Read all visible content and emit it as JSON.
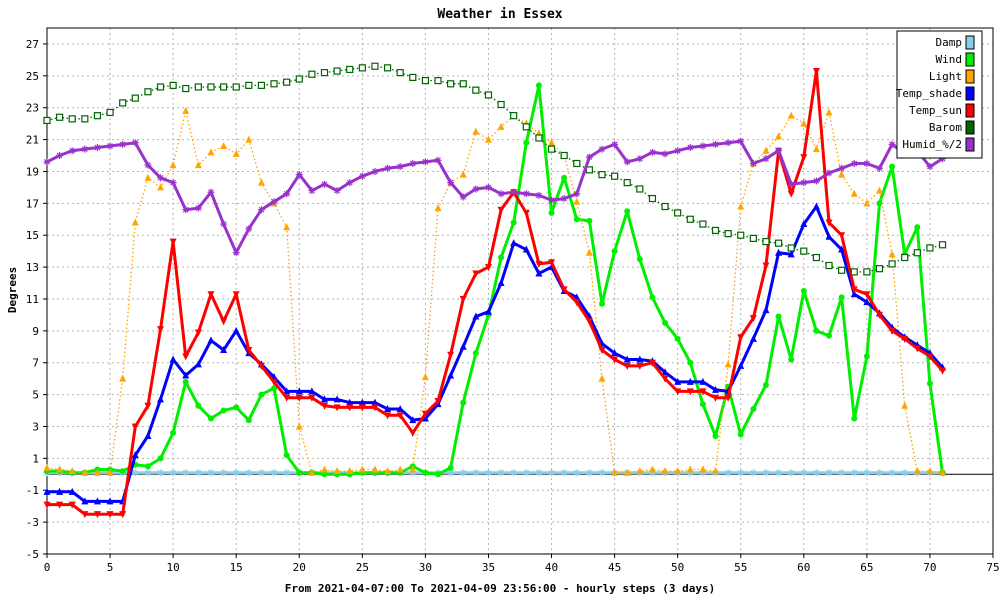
{
  "chart_data": {
    "type": "line",
    "title": "Weather in Essex",
    "xlabel": "From 2021-04-07:00 To 2021-04-09 23:56:00 - hourly steps (3 days)",
    "ylabel": "Degrees",
    "xlim": [
      0,
      75
    ],
    "ylim": [
      -5,
      28
    ],
    "x_ticks": [
      0,
      5,
      10,
      15,
      20,
      25,
      30,
      35,
      40,
      45,
      50,
      55,
      60,
      65,
      70,
      75
    ],
    "y_ticks": [
      -5,
      -3,
      -1,
      1,
      3,
      5,
      7,
      9,
      11,
      13,
      15,
      17,
      19,
      21,
      23,
      25,
      27
    ],
    "grid": true,
    "legend_position": "top-right",
    "x": [
      0,
      1,
      2,
      3,
      4,
      5,
      6,
      7,
      8,
      9,
      10,
      11,
      12,
      13,
      14,
      15,
      16,
      17,
      18,
      19,
      20,
      21,
      22,
      23,
      24,
      25,
      26,
      27,
      28,
      29,
      30,
      31,
      32,
      33,
      34,
      35,
      36,
      37,
      38,
      39,
      40,
      41,
      42,
      43,
      44,
      45,
      46,
      47,
      48,
      49,
      50,
      51,
      52,
      53,
      54,
      55,
      56,
      57,
      58,
      59,
      60,
      61,
      62,
      63,
      64,
      65,
      66,
      67,
      68,
      69,
      70,
      71
    ],
    "series": [
      {
        "name": "Damp",
        "color": "#87ceeb",
        "marker": "star",
        "style": "solid",
        "values": [
          0.1,
          0.1,
          0.1,
          0.1,
          0.1,
          0.1,
          0.1,
          0.1,
          0.1,
          0.1,
          0.1,
          0.1,
          0.1,
          0.1,
          0.1,
          0.1,
          0.1,
          0.1,
          0.1,
          0.1,
          0.1,
          0.1,
          0.1,
          0.1,
          0.1,
          0.1,
          0.1,
          0.1,
          0.1,
          0.1,
          0.1,
          0.1,
          0.1,
          0.1,
          0.1,
          0.1,
          0.1,
          0.1,
          0.1,
          0.1,
          0.1,
          0.1,
          0.1,
          0.1,
          0.1,
          0.1,
          0.1,
          0.1,
          0.1,
          0.1,
          0.1,
          0.1,
          0.1,
          0.1,
          0.1,
          0.1,
          0.1,
          0.1,
          0.1,
          0.1,
          0.1,
          0.1,
          0.1,
          0.1,
          0.1,
          0.1,
          0.1,
          0.1,
          0.1,
          0.1,
          0.1,
          0.1
        ]
      },
      {
        "name": "Wind",
        "color": "#00ee00",
        "marker": "circle",
        "style": "solid",
        "values": [
          0.2,
          0.2,
          0.1,
          0.1,
          0.3,
          0.3,
          0.2,
          0.6,
          0.5,
          1.0,
          2.6,
          5.8,
          4.3,
          3.5,
          4.0,
          4.2,
          3.4,
          5.0,
          5.4,
          1.2,
          0.1,
          0.1,
          0.0,
          0.0,
          0.0,
          0.1,
          0.1,
          0.1,
          0.1,
          0.5,
          0.1,
          0.0,
          0.4,
          4.5,
          7.6,
          10.0,
          13.6,
          15.8,
          20.8,
          24.4,
          16.4,
          18.6,
          16.0,
          15.9,
          10.7,
          14.0,
          16.5,
          13.5,
          11.1,
          9.5,
          8.5,
          7.0,
          4.4,
          2.4,
          5.5,
          2.5,
          4.1,
          5.6,
          9.9,
          7.2,
          11.5,
          9.0,
          8.7,
          11.1,
          3.5,
          7.4,
          17.0,
          19.3,
          13.8,
          15.5,
          5.7,
          0.1
        ]
      },
      {
        "name": "Light",
        "color": "#ffa500",
        "marker": "triangle-up",
        "style": "dotted",
        "values": [
          0.4,
          0.3,
          0.2,
          0.1,
          0.1,
          0.1,
          6.0,
          15.8,
          18.6,
          18.0,
          19.4,
          22.8,
          19.4,
          20.2,
          20.6,
          20.1,
          21.0,
          18.3,
          17.0,
          15.5,
          3.0,
          0.1,
          0.3,
          0.2,
          0.2,
          0.3,
          0.3,
          0.2,
          0.3,
          0.3,
          6.1,
          16.7,
          18.3,
          18.8,
          21.5,
          21.0,
          21.8,
          22.5,
          22.0,
          21.4,
          20.8,
          20.0,
          17.1,
          13.9,
          6.0,
          0.1,
          0.1,
          0.2,
          0.3,
          0.2,
          0.2,
          0.3,
          0.3,
          0.2,
          6.9,
          16.8,
          19.5,
          20.3,
          21.2,
          22.5,
          22.0,
          20.4,
          22.7,
          18.8,
          17.6,
          17.0,
          17.8,
          13.8,
          4.3,
          0.2,
          0.2,
          0.1
        ]
      },
      {
        "name": "Temp_shade",
        "color": "#0000ff",
        "marker": "triangle-up",
        "style": "solid",
        "values": [
          -1.1,
          -1.1,
          -1.1,
          -1.7,
          -1.7,
          -1.7,
          -1.7,
          1.2,
          2.4,
          4.7,
          7.2,
          6.2,
          6.9,
          8.4,
          7.8,
          9.0,
          7.6,
          6.9,
          6.1,
          5.2,
          5.2,
          5.2,
          4.7,
          4.7,
          4.5,
          4.5,
          4.5,
          4.1,
          4.1,
          3.4,
          3.5,
          4.4,
          6.2,
          8.0,
          9.9,
          10.2,
          12.0,
          14.5,
          14.1,
          12.6,
          13.0,
          11.5,
          11.1,
          9.9,
          8.2,
          7.6,
          7.2,
          7.2,
          7.1,
          6.4,
          5.8,
          5.8,
          5.8,
          5.3,
          5.2,
          6.8,
          8.5,
          10.3,
          13.9,
          13.8,
          15.7,
          16.8,
          14.9,
          14.1,
          11.3,
          10.8,
          10.1,
          9.2,
          8.6,
          8.1,
          7.6,
          6.7
        ]
      },
      {
        "name": "Temp_sun",
        "color": "#ff0000",
        "marker": "triangle-down",
        "style": "solid",
        "values": [
          -1.9,
          -1.9,
          -1.9,
          -2.5,
          -2.5,
          -2.5,
          -2.5,
          3.0,
          4.3,
          9.1,
          14.6,
          7.4,
          8.9,
          11.3,
          9.6,
          11.3,
          7.8,
          6.8,
          5.8,
          4.8,
          4.8,
          4.8,
          4.3,
          4.2,
          4.2,
          4.2,
          4.2,
          3.7,
          3.7,
          2.6,
          3.8,
          4.6,
          7.5,
          11.0,
          12.6,
          13.0,
          16.6,
          17.7,
          16.4,
          13.2,
          13.3,
          11.6,
          10.8,
          9.6,
          7.8,
          7.2,
          6.8,
          6.8,
          7.0,
          6.0,
          5.2,
          5.2,
          5.2,
          4.8,
          4.8,
          8.6,
          9.8,
          13.1,
          20.3,
          17.6,
          19.9,
          25.3,
          15.8,
          15.0,
          11.6,
          11.3,
          10.0,
          9.0,
          8.5,
          7.9,
          7.4,
          6.5
        ]
      },
      {
        "name": "Barom",
        "color": "#006400",
        "marker": "square",
        "style": "dotted",
        "values": [
          22.2,
          22.4,
          22.3,
          22.3,
          22.5,
          22.7,
          23.3,
          23.6,
          24.0,
          24.3,
          24.4,
          24.2,
          24.3,
          24.3,
          24.3,
          24.3,
          24.4,
          24.4,
          24.5,
          24.6,
          24.8,
          25.1,
          25.2,
          25.3,
          25.4,
          25.5,
          25.6,
          25.5,
          25.2,
          24.9,
          24.7,
          24.7,
          24.5,
          24.5,
          24.1,
          23.8,
          23.2,
          22.5,
          21.8,
          21.1,
          20.4,
          20.0,
          19.5,
          19.1,
          18.8,
          18.7,
          18.3,
          17.9,
          17.3,
          16.8,
          16.4,
          16.0,
          15.7,
          15.3,
          15.1,
          15.0,
          14.8,
          14.6,
          14.5,
          14.2,
          14.0,
          13.6,
          13.1,
          12.8,
          12.7,
          12.7,
          12.9,
          13.2,
          13.6,
          13.9,
          14.2,
          14.4
        ]
      },
      {
        "name": "Humid_%/2",
        "color": "#9932cc",
        "marker": "star",
        "style": "solid",
        "values": [
          19.6,
          20.0,
          20.3,
          20.4,
          20.5,
          20.6,
          20.7,
          20.8,
          19.4,
          18.6,
          18.3,
          16.6,
          16.7,
          17.7,
          15.7,
          13.9,
          15.4,
          16.6,
          17.1,
          17.6,
          18.8,
          17.8,
          18.2,
          17.8,
          18.3,
          18.7,
          19.0,
          19.2,
          19.3,
          19.5,
          19.6,
          19.7,
          18.3,
          17.4,
          17.9,
          18.0,
          17.6,
          17.7,
          17.6,
          17.5,
          17.2,
          17.3,
          17.6,
          19.9,
          20.4,
          20.7,
          19.6,
          19.8,
          20.2,
          20.1,
          20.3,
          20.5,
          20.6,
          20.7,
          20.8,
          20.9,
          19.5,
          19.8,
          20.3,
          18.2,
          18.3,
          18.4,
          18.9,
          19.2,
          19.5,
          19.5,
          19.2,
          20.7,
          20.1,
          20.3,
          19.3,
          19.8
        ]
      }
    ]
  }
}
